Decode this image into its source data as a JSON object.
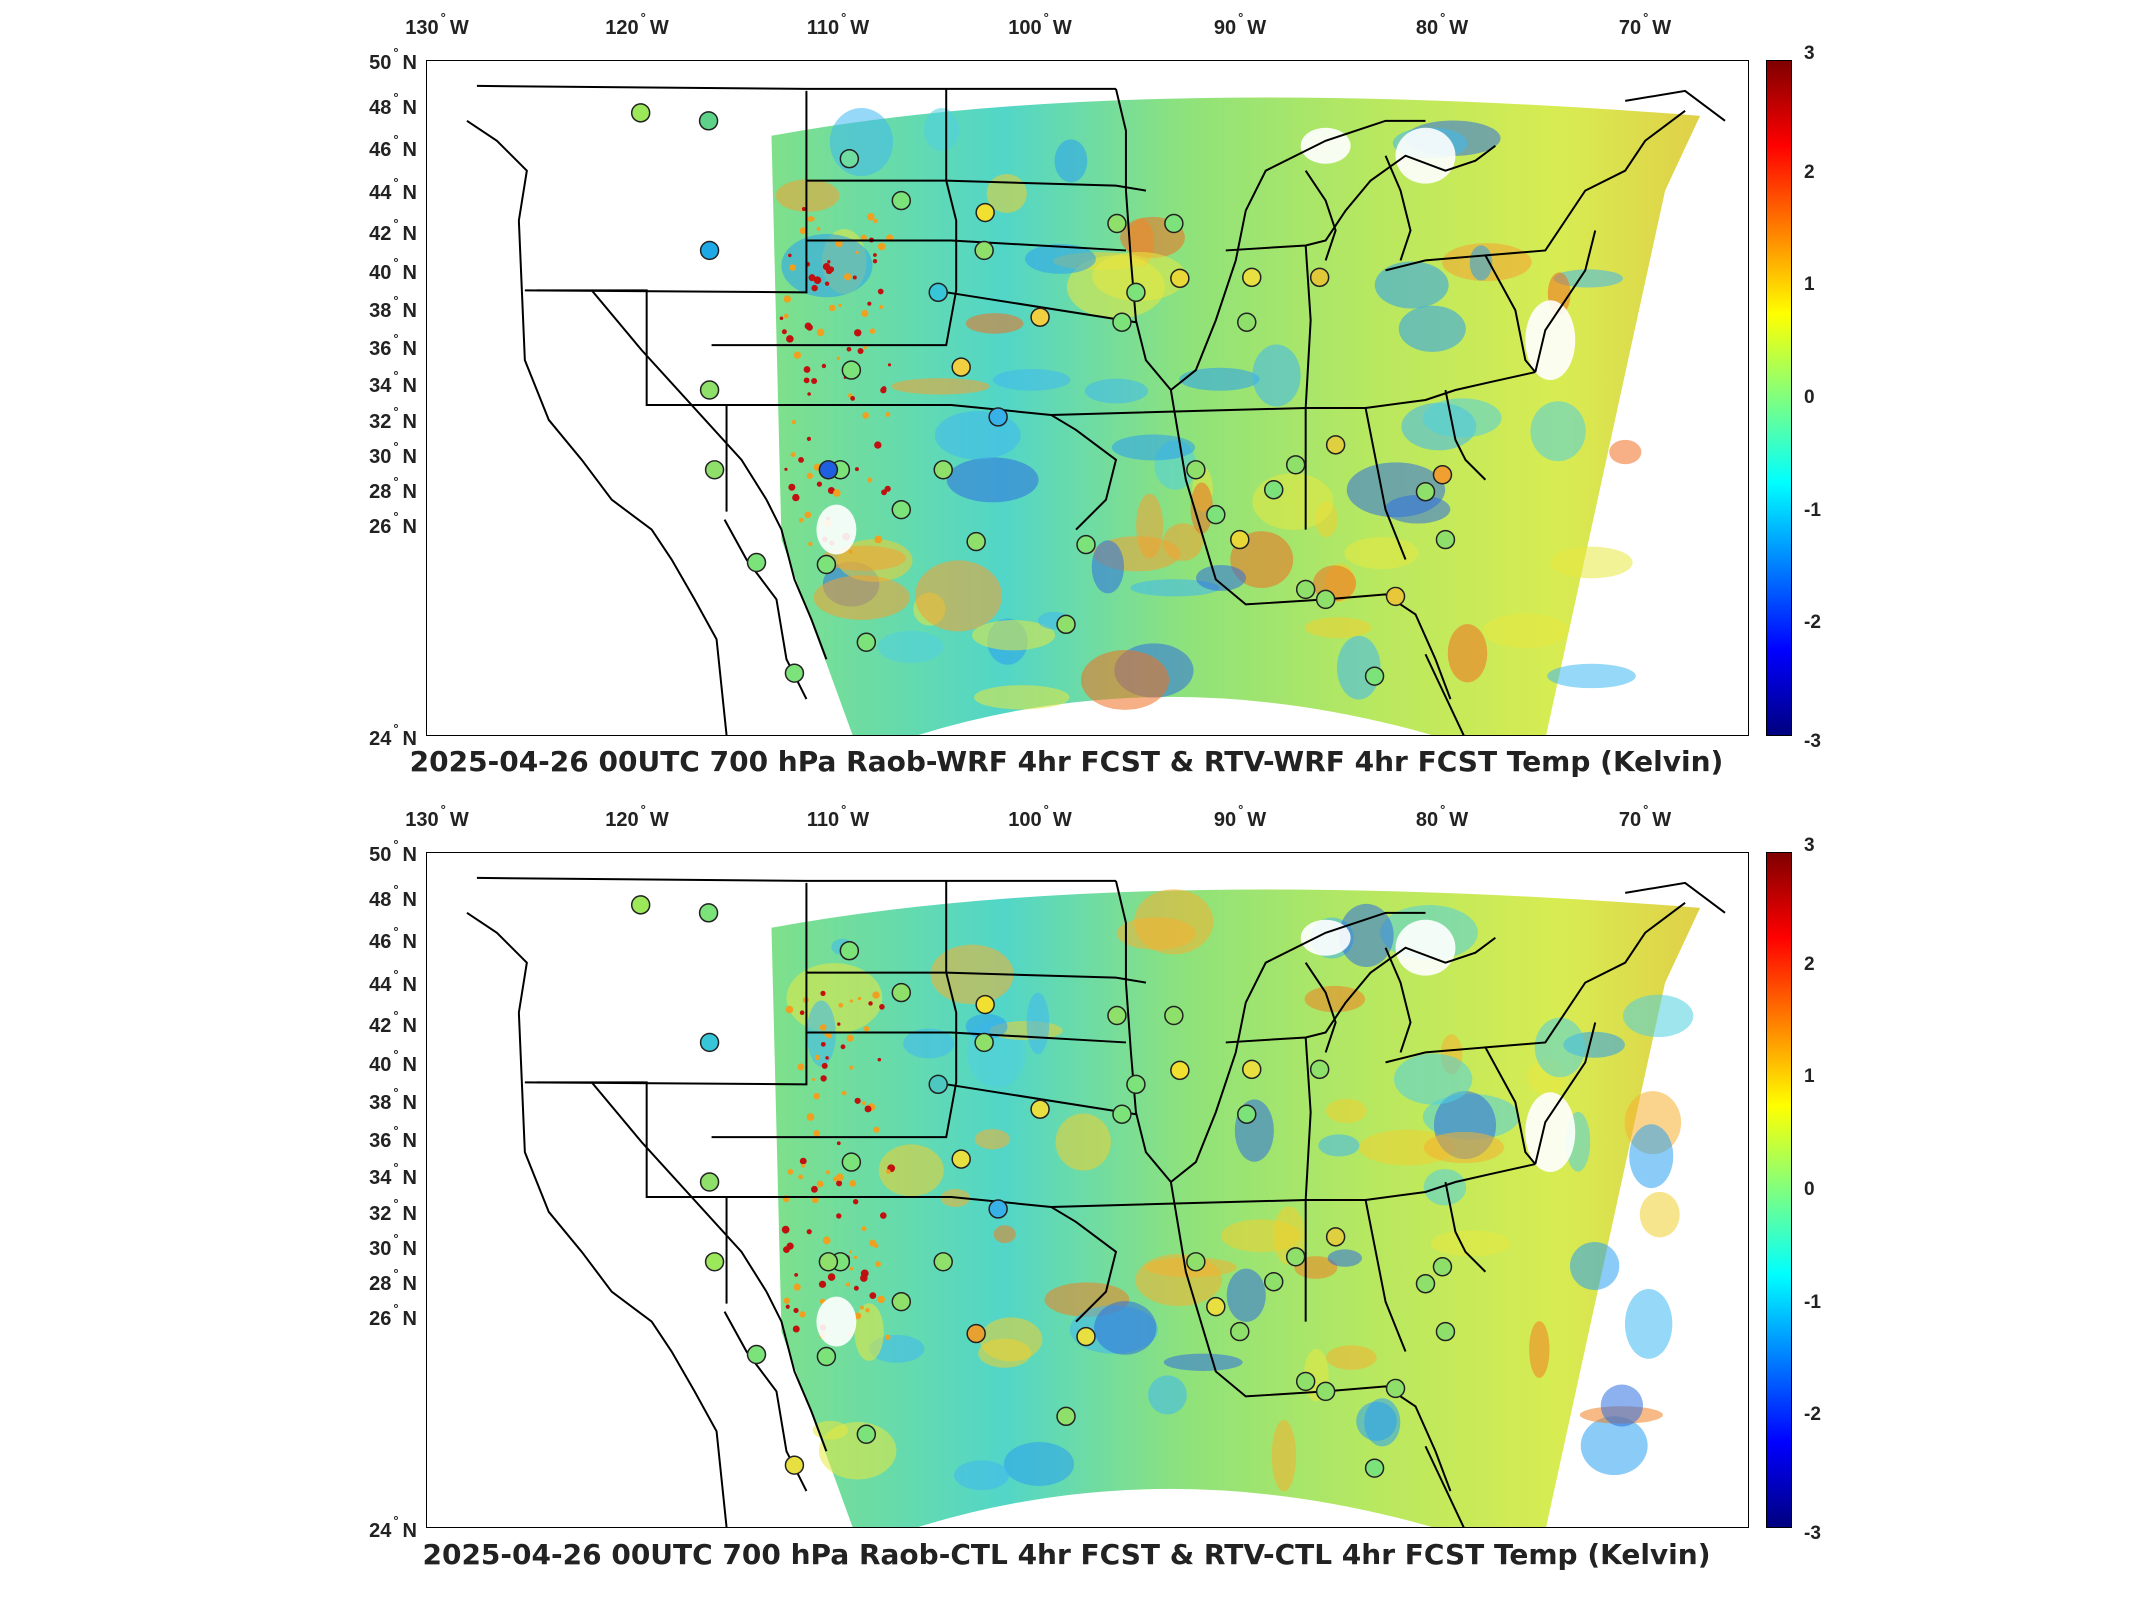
{
  "lon_ticks": [
    "130",
    "120",
    "110",
    "100",
    "90",
    "80",
    "70"
  ],
  "lon_hemi": "W",
  "lat_ticks": [
    "50",
    "48",
    "46",
    "44",
    "42",
    "40",
    "38",
    "36",
    "34",
    "32",
    "30",
    "28",
    "26",
    "24"
  ],
  "lat_hemi": "N",
  "colorbar": {
    "ticks": [
      "3",
      "2",
      "1",
      "0",
      "-1",
      "-2",
      "-3"
    ],
    "range": [
      -3,
      3
    ],
    "colormap": "jet"
  },
  "panels": [
    {
      "title": "2025-04-26 00UTC 700 hPa Raob-WRF 4hr FCST & RTV-WRF 4hr FCST Temp (Kelvin)"
    },
    {
      "title": "2025-04-26 00UTC 700 hPa Raob-CTL 4hr FCST & RTV-CTL 4hr FCST Temp (Kelvin)"
    }
  ],
  "colors": {
    "frame": "#000000",
    "land_outline": "#000000",
    "field_base": "#6fd88c"
  }
}
